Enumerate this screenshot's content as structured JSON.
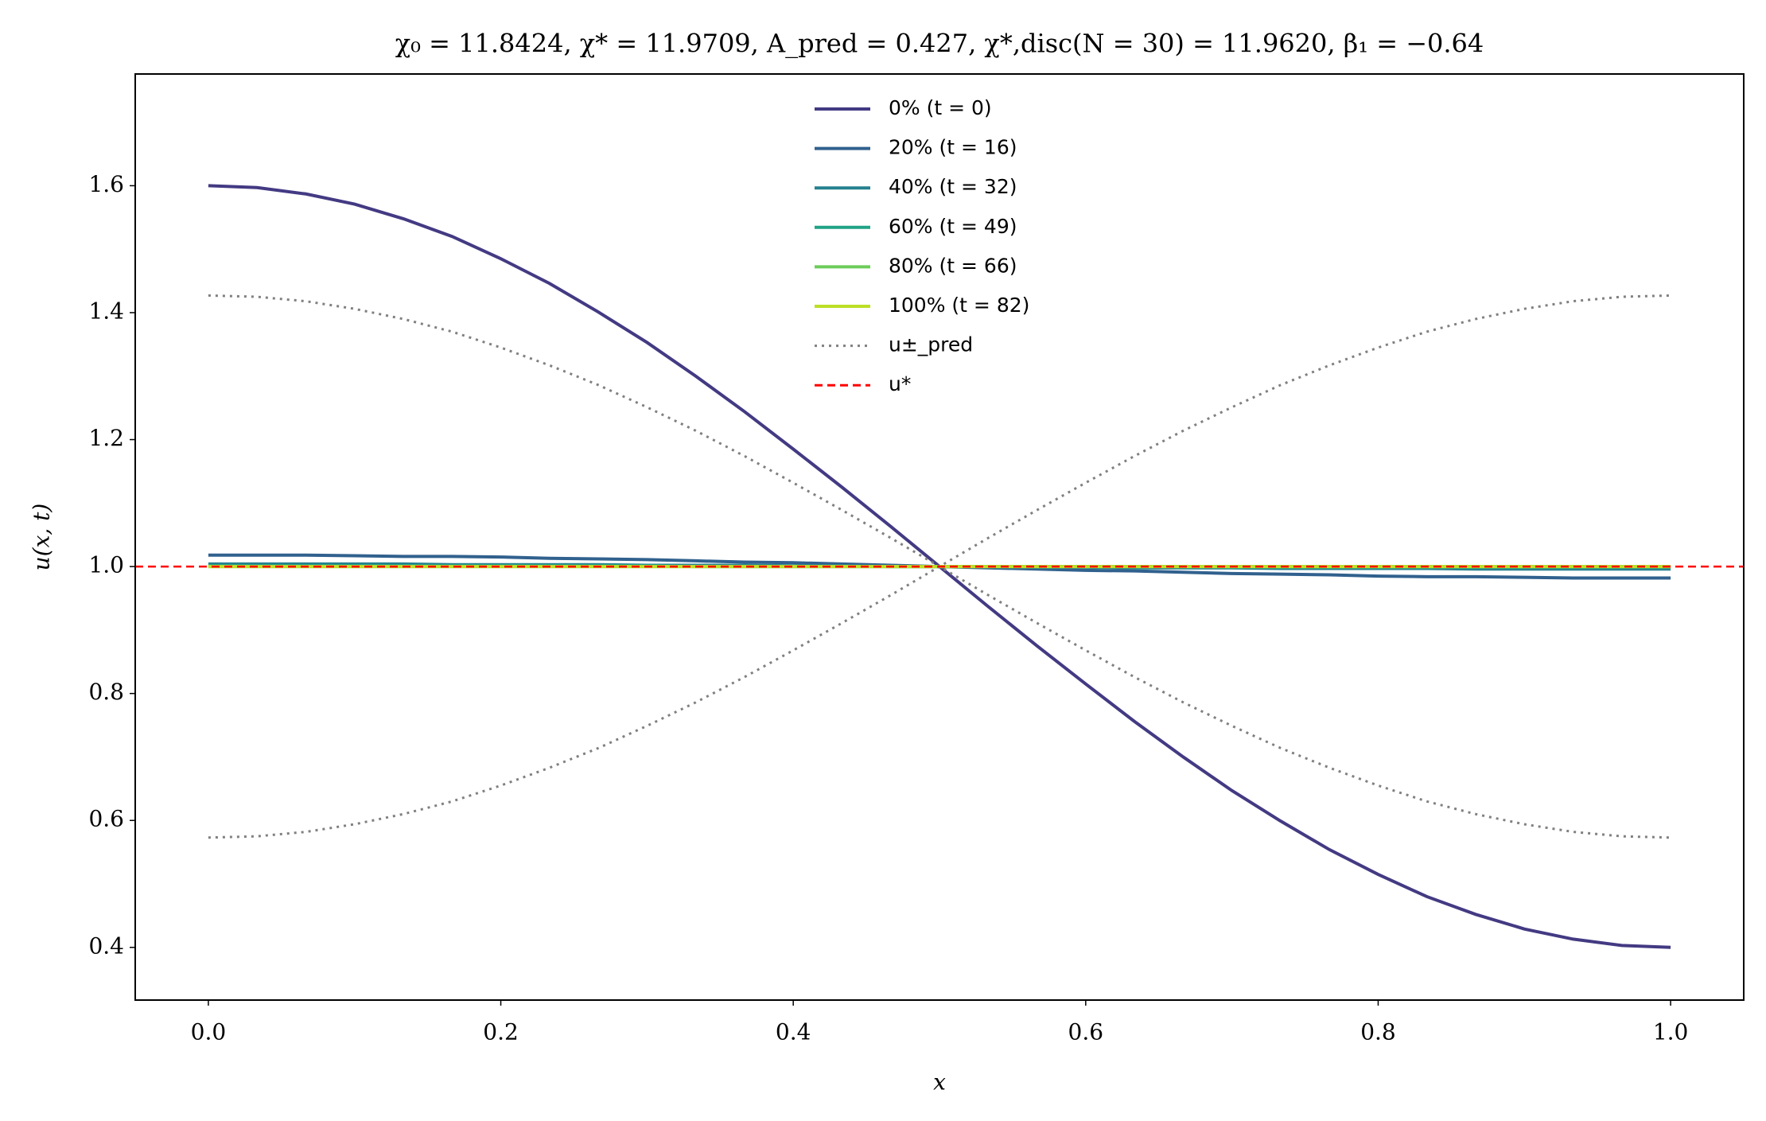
{
  "chart_data": {
    "type": "line",
    "title": "χ₀ = 11.8424,  χ* = 11.9709,  A_pred = 0.427,  χ*,disc(N = 30) = 11.9620,  β₁ = −0.64",
    "xlabel": "x",
    "ylabel": "u(x, t)",
    "x": [
      0,
      0.0333,
      0.0667,
      0.1,
      0.1333,
      0.1667,
      0.2,
      0.2333,
      0.2667,
      0.3,
      0.3333,
      0.3667,
      0.4,
      0.4333,
      0.4667,
      0.5,
      0.5333,
      0.5667,
      0.6,
      0.6333,
      0.6667,
      0.7,
      0.7333,
      0.7667,
      0.8,
      0.8333,
      0.8667,
      0.9,
      0.9333,
      0.9667,
      1
    ],
    "xlim": [
      -0.05,
      1.05
    ],
    "ylim": [
      0.317,
      1.776
    ],
    "xticks": [
      {
        "value": 0,
        "label": "0.0"
      },
      0.2,
      0.4,
      0.6,
      0.8,
      {
        "value": 1,
        "label": "1.0"
      }
    ],
    "yticks": [
      0.4,
      0.6,
      0.8,
      {
        "value": 1,
        "label": "1.0"
      },
      1.2,
      1.4,
      1.6
    ],
    "grid": false,
    "legend": "upper center",
    "series": [
      {
        "name": "0% (t = 0)",
        "color": "#433a83",
        "values": [
          1.6,
          1.597,
          1.587,
          1.571,
          1.548,
          1.52,
          1.485,
          1.446,
          1.401,
          1.353,
          1.3,
          1.244,
          1.185,
          1.125,
          1.063,
          1,
          0.937,
          0.875,
          0.815,
          0.756,
          0.7,
          0.647,
          0.599,
          0.554,
          0.515,
          0.48,
          0.452,
          0.429,
          0.413,
          0.403,
          0.4
        ]
      },
      {
        "name": "20% (t = 16)",
        "color": "#31618e",
        "values": [
          1.018,
          1.018,
          1.018,
          1.017,
          1.016,
          1.016,
          1.015,
          1.013,
          1.012,
          1.011,
          1.009,
          1.007,
          1.006,
          1.004,
          1.002,
          1,
          0.998,
          0.996,
          0.994,
          0.993,
          0.991,
          0.989,
          0.988,
          0.987,
          0.985,
          0.984,
          0.984,
          0.983,
          0.982,
          0.982,
          0.982
        ]
      },
      {
        "name": "40% (t = 32)",
        "color": "#26818e",
        "values": [
          1.004,
          1.004,
          1.004,
          1.004,
          1.004,
          1.003,
          1.003,
          1.003,
          1.003,
          1.002,
          1.002,
          1.002,
          1.001,
          1.001,
          1,
          1,
          1,
          0.999,
          0.999,
          0.998,
          0.998,
          0.998,
          0.997,
          0.997,
          0.997,
          0.997,
          0.996,
          0.996,
          0.996,
          0.996,
          0.996
        ]
      },
      {
        "name": "60% (t = 49)",
        "color": "#20a386",
        "values": [
          1.001,
          1.001,
          1.001,
          1.001,
          1.001,
          1.001,
          1.001,
          1.001,
          1.001,
          1.001,
          1,
          1,
          1,
          1,
          1,
          1,
          1,
          1,
          1,
          1,
          1,
          0.999,
          0.999,
          0.999,
          0.999,
          0.999,
          0.999,
          0.999,
          0.999,
          0.999,
          0.999
        ]
      },
      {
        "name": "80% (t = 66)",
        "color": "#6ccd5a",
        "values": [
          1,
          1,
          1,
          1,
          1,
          1,
          1,
          1,
          1,
          1,
          1,
          1,
          1,
          1,
          1,
          1,
          1,
          1,
          1,
          1,
          1,
          1,
          1,
          1,
          1,
          1,
          1,
          1,
          1,
          1,
          1
        ]
      },
      {
        "name": "100% (t = 82)",
        "color": "#bddf26",
        "values": [
          1,
          1,
          1,
          1,
          1,
          1,
          1,
          1,
          1,
          1,
          1,
          1,
          1,
          1,
          1,
          1,
          1,
          1,
          1,
          1,
          1,
          1,
          1,
          1,
          1,
          1,
          1,
          1,
          1,
          1,
          1
        ]
      },
      {
        "name": "u±_pred",
        "color": "#808080",
        "style": "dotted",
        "values": [
          1.427,
          1.425,
          1.418,
          1.406,
          1.39,
          1.37,
          1.345,
          1.317,
          1.286,
          1.251,
          1.214,
          1.174,
          1.132,
          1.089,
          1.045,
          1,
          0.955,
          0.911,
          0.868,
          0.826,
          0.786,
          0.749,
          0.714,
          0.683,
          0.655,
          0.63,
          0.61,
          0.594,
          0.582,
          0.575,
          0.573
        ],
        "lower": [
          0.573,
          0.575,
          0.582,
          0.594,
          0.61,
          0.63,
          0.655,
          0.683,
          0.714,
          0.749,
          0.786,
          0.826,
          0.868,
          0.911,
          0.955,
          1,
          1.045,
          1.089,
          1.132,
          1.174,
          1.214,
          1.251,
          1.286,
          1.317,
          1.345,
          1.37,
          1.39,
          1.406,
          1.418,
          1.425,
          1.427
        ]
      }
    ],
    "hline": {
      "name": "u*",
      "value": 1,
      "color": "#ff0000",
      "style": "dashed"
    }
  }
}
